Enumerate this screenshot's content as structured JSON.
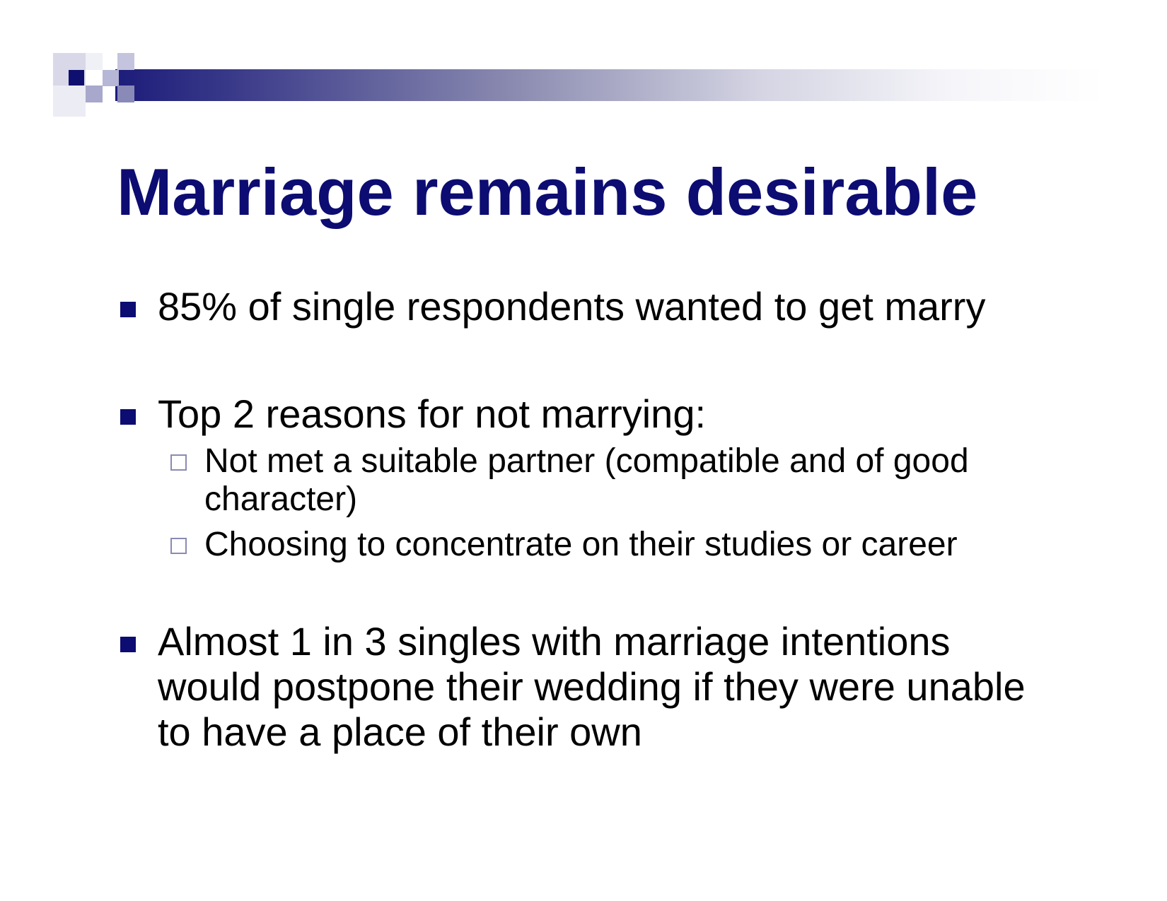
{
  "slide": {
    "title": "Marriage remains desirable",
    "bullets": [
      {
        "text": "85% of single respondents wanted to get marry"
      },
      {
        "text": "Top 2 reasons for not marrying:",
        "sub_items": [
          "Not met a suitable partner (compatible and of good character)",
          "Choosing to concentrate on their studies or career"
        ]
      },
      {
        "text": "Almost 1 in 3 singles with marriage intentions would postpone their wedding if they were unable to have a place of their own"
      }
    ]
  },
  "colors": {
    "title": "#0c0c72",
    "bullet_marker": "#0c0c72",
    "sub_marker_border": "#8a8ab4",
    "text": "#000000"
  },
  "icons": {
    "bullet": "filled-square-bullet-icon",
    "sub_bullet": "hollow-square-bullet-icon",
    "header": "checker-squares-decoration"
  }
}
